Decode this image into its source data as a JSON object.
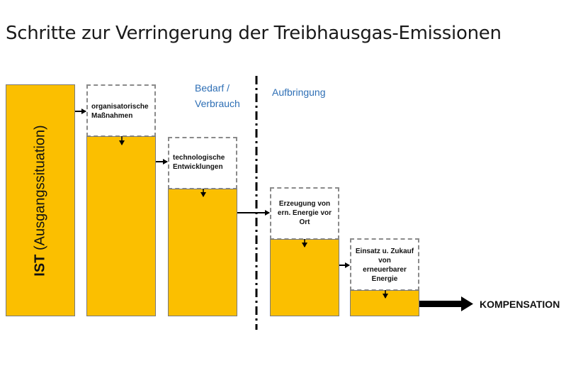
{
  "title": "Schritte zur Verringerung der Treibhausgas-Emissionen",
  "ist": {
    "bold": "IST",
    "rest": " (Ausgangssituation)"
  },
  "headers": {
    "bedarf_line1": "Bedarf /",
    "bedarf_line2": "Verbrauch",
    "aufbringung": "Aufbringung"
  },
  "steps": [
    {
      "line1": "organisatorische",
      "line2": "Maßnahmen"
    },
    {
      "line1": "technologische",
      "line2": "Entwicklungen"
    },
    {
      "line1": "Erzeugung von",
      "line2": "ern. Energie vor",
      "line3": "Ort"
    },
    {
      "line1": "Einsatz u. Zukauf",
      "line2": "von",
      "line3": "erneuerbarer",
      "line4": "Energie"
    }
  ],
  "kompensation": "KOMPENSATION",
  "colors": {
    "bar": "#fbbf00",
    "header": "#2e6fb5"
  }
}
